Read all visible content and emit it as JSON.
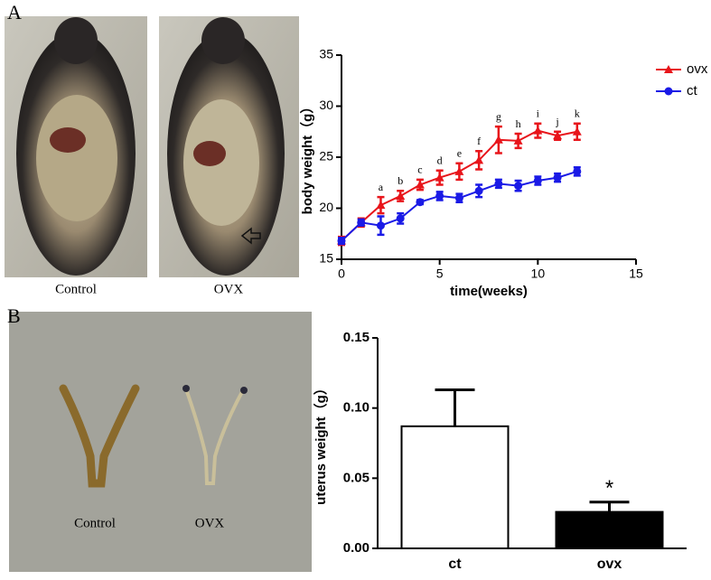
{
  "panels": [
    {
      "label": "A",
      "captions": [
        "Control",
        "OVX"
      ]
    },
    {
      "label": "B",
      "captions": [
        "Control",
        "OVX"
      ]
    }
  ],
  "chart_data": [
    {
      "type": "line",
      "x_label": "time(weeks)",
      "y_label": "body weight（g）",
      "x": [
        0,
        1,
        2,
        3,
        4,
        5,
        6,
        7,
        8,
        9,
        10,
        11,
        12
      ],
      "xlim": [
        0,
        15
      ],
      "xticks": [
        0,
        5,
        10,
        15
      ],
      "ylim": [
        15,
        35
      ],
      "yticks": [
        15,
        20,
        25,
        30,
        35
      ],
      "legend": "top-right",
      "series": [
        {
          "name": "ovx",
          "color": "#e8151b",
          "marker": "triangle",
          "values": [
            16.8,
            18.6,
            20.3,
            21.2,
            22.3,
            23.0,
            23.6,
            24.7,
            26.7,
            26.6,
            27.6,
            27.1,
            27.5
          ],
          "errors": [
            0.4,
            0.4,
            0.8,
            0.5,
            0.5,
            0.7,
            0.8,
            0.9,
            1.3,
            0.7,
            0.7,
            0.4,
            0.8
          ]
        },
        {
          "name": "ct",
          "color": "#1a1ae6",
          "marker": "circle",
          "values": [
            16.8,
            18.6,
            18.3,
            19.0,
            20.6,
            21.2,
            21.0,
            21.7,
            22.4,
            22.2,
            22.7,
            23.0,
            23.6
          ],
          "errors": [
            0.3,
            0.3,
            0.9,
            0.5,
            0.2,
            0.4,
            0.4,
            0.6,
            0.4,
            0.5,
            0.4,
            0.4,
            0.4
          ]
        }
      ],
      "annotations": [
        "a",
        "b",
        "c",
        "d",
        "e",
        "f",
        "g",
        "h",
        "i",
        "j",
        "k"
      ]
    },
    {
      "type": "bar",
      "y_label": "uterus weight（g）",
      "categories": [
        "ct",
        "ovx"
      ],
      "values": [
        0.087,
        0.026
      ],
      "errors": [
        0.026,
        0.007
      ],
      "colors": [
        "#ffffff",
        "#000000"
      ],
      "ylim": [
        0,
        0.15
      ],
      "yticks": [
        {
          "value": 0,
          "label": "0.00"
        },
        {
          "value": 0.05,
          "label": "0.05"
        },
        {
          "value": 0.1,
          "label": "0.10"
        },
        {
          "value": 0.15,
          "label": "0.15"
        }
      ],
      "annotations": [
        "",
        "*"
      ]
    }
  ]
}
